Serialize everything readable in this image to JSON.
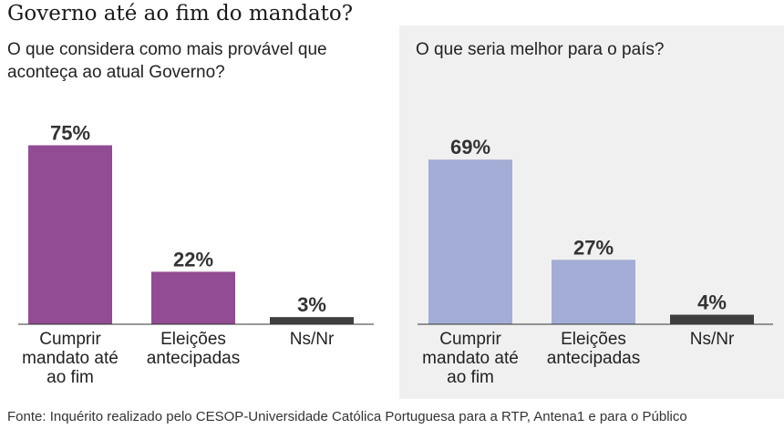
{
  "header": {
    "title": "Governo até ao fim do mandato?",
    "source": "Fonte: Inquérito realizado pelo CESOP-Universidade Católica Portuguesa para a RTP,  Antena1 e para o Público"
  },
  "chart_data": [
    {
      "type": "bar",
      "title": "O que considera como mais provável que aconteça ao atual Governo?",
      "categories": [
        "Cumprir mandato até ao fim",
        "Eleições antecipadas",
        "Ns/Nr"
      ],
      "category_lines": [
        [
          "Cumprir",
          "mandato até",
          "ao fim"
        ],
        [
          "Eleições",
          "antecipadas"
        ],
        [
          "Ns/Nr"
        ]
      ],
      "values": [
        75,
        22,
        3
      ],
      "value_labels": [
        "75%",
        "22%",
        "3%"
      ],
      "colors": [
        "#924c93",
        "#924c93",
        "#3f3f3f"
      ],
      "ylim": [
        0,
        100
      ],
      "xlabel": "",
      "ylabel": ""
    },
    {
      "type": "bar",
      "title": "O que seria melhor para o país?",
      "categories": [
        "Cumprir mandato até ao fim",
        "Eleições antecipadas",
        "Ns/Nr"
      ],
      "category_lines": [
        [
          "Cumprir",
          "mandato até",
          "ao fim"
        ],
        [
          "Eleições",
          "antecipadas"
        ],
        [
          "Ns/Nr"
        ]
      ],
      "values": [
        69,
        27,
        4
      ],
      "value_labels": [
        "69%",
        "27%",
        "4%"
      ],
      "colors": [
        "#a3add6",
        "#a3add6",
        "#3f3f3f"
      ],
      "ylim": [
        0,
        100
      ],
      "xlabel": "",
      "ylabel": ""
    }
  ]
}
